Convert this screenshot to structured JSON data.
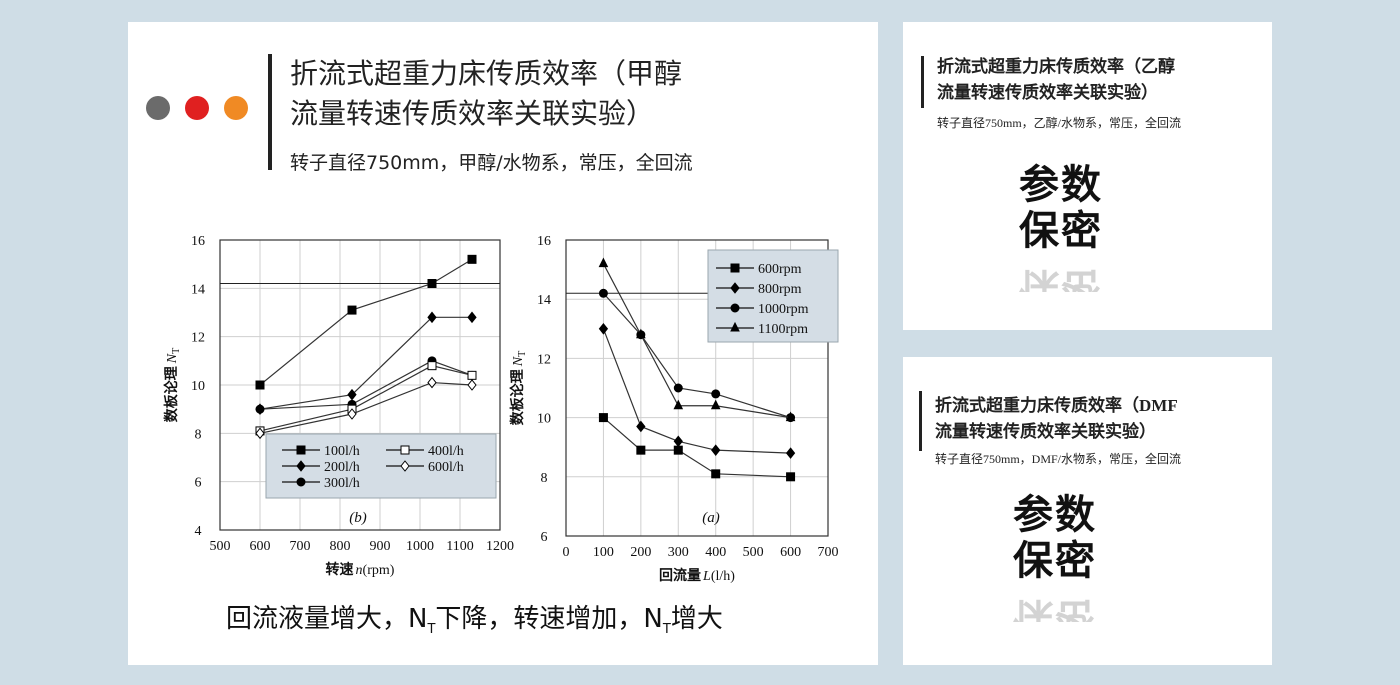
{
  "colors": {
    "background": "#cfdde6",
    "panel": "#ffffff",
    "dot1": "#6b6b6b",
    "dot2": "#e02020",
    "dot3": "#f08a24",
    "legend_bg": "#d4dde5"
  },
  "main": {
    "title_line1": "折流式超重力床传质效率（甲醇",
    "title_line2": "流量转速传质效率关联实验）",
    "subtitle": "转子直径750mm，甲醇/水物系，常压，全回流",
    "conclusion_a": "回流液量增大，N",
    "conclusion_sub1": "T",
    "conclusion_b": "下降，转速增加，N",
    "conclusion_sub2": "T",
    "conclusion_c": "增大"
  },
  "ethanol": {
    "title_line1": "折流式超重力床传质效率（乙醇",
    "title_line2": "流量转速传质效率关联实验）",
    "subtitle": "转子直径750mm，乙醇/水物系，常压，全回流",
    "secret_line1": "参数",
    "secret_line2": "保密"
  },
  "dmf": {
    "title_line1": "折流式超重力床传质效率（DMF",
    "title_line2": "流量转速传质效率关联实验）",
    "subtitle": "转子直径750mm，DMF/水物系，常压，全回流",
    "secret_line1": "参数",
    "secret_line2": "保密"
  },
  "chart_data": [
    {
      "type": "line",
      "panel_label": "(b)",
      "xlabel_prefix": "转速",
      "xlabel_var": "n",
      "xlabel_unit": "(rpm)",
      "ylabel": "数板论理",
      "ylabel_var": "N",
      "ylabel_sub": "T",
      "xlim": [
        500,
        1200
      ],
      "ylim": [
        4,
        16
      ],
      "xticks": [
        500,
        600,
        700,
        800,
        900,
        1000,
        1100,
        1200
      ],
      "yticks": [
        4,
        6,
        8,
        10,
        12,
        14,
        16
      ],
      "grid": true,
      "reference_line_y": 14.2,
      "legend_position": "bottom-right",
      "series": [
        {
          "name": "100l/h",
          "marker": "square-filled",
          "x": [
            600,
            830,
            1030,
            1130
          ],
          "values": [
            10.0,
            13.1,
            14.2,
            15.2
          ]
        },
        {
          "name": "200l/h",
          "marker": "diamond-filled",
          "x": [
            600,
            830,
            1030,
            1130
          ],
          "values": [
            9.0,
            9.6,
            12.8,
            12.8
          ]
        },
        {
          "name": "300l/h",
          "marker": "circle-filled",
          "x": [
            600,
            830,
            1030,
            1130
          ],
          "values": [
            9.0,
            9.2,
            11.0,
            10.4
          ]
        },
        {
          "name": "400l/h",
          "marker": "square-open",
          "x": [
            600,
            830,
            1030,
            1130
          ],
          "values": [
            8.1,
            9.0,
            10.8,
            10.4
          ]
        },
        {
          "name": "600l/h",
          "marker": "diamond-open",
          "x": [
            600,
            830,
            1030,
            1130
          ],
          "values": [
            8.0,
            8.8,
            10.1,
            10.0
          ]
        }
      ]
    },
    {
      "type": "line",
      "panel_label": "(a)",
      "xlabel_prefix": "回流量",
      "xlabel_var": "L",
      "xlabel_unit": "(l/h)",
      "ylabel": "数板论理",
      "ylabel_var": "N",
      "ylabel_sub": "T",
      "xlim": [
        0,
        700
      ],
      "ylim": [
        6,
        16
      ],
      "xticks": [
        0,
        100,
        200,
        300,
        400,
        500,
        600,
        700
      ],
      "yticks": [
        6,
        8,
        10,
        12,
        14,
        16
      ],
      "grid": true,
      "reference_line_y": 14.2,
      "legend_position": "top-right",
      "series": [
        {
          "name": "600rpm",
          "marker": "square-filled",
          "x": [
            100,
            200,
            300,
            400,
            600
          ],
          "values": [
            10.0,
            8.9,
            8.9,
            8.1,
            8.0
          ]
        },
        {
          "name": "800rpm",
          "marker": "diamond-filled",
          "x": [
            100,
            200,
            300,
            400,
            600
          ],
          "values": [
            13.0,
            9.7,
            9.2,
            8.9,
            8.8
          ]
        },
        {
          "name": "1000rpm",
          "marker": "circle-filled",
          "x": [
            100,
            200,
            300,
            400,
            600
          ],
          "values": [
            14.2,
            12.8,
            11.0,
            10.8,
            10.0
          ]
        },
        {
          "name": "1100rpm",
          "marker": "triangle-filled",
          "x": [
            100,
            200,
            300,
            400,
            600
          ],
          "values": [
            15.2,
            12.8,
            10.4,
            10.4,
            10.0
          ]
        }
      ]
    }
  ]
}
